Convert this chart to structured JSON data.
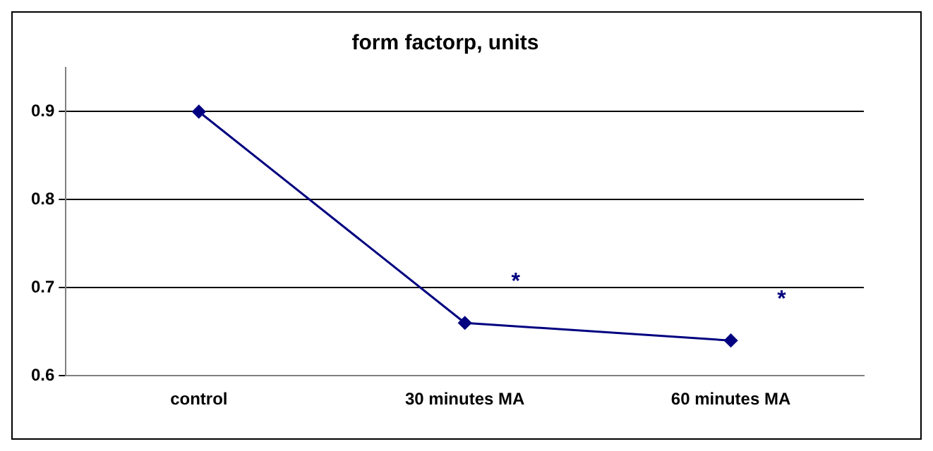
{
  "chart_data": {
    "type": "line",
    "title": "form factorp, units",
    "categories": [
      "control",
      "30 minutes MA",
      "60 minutes MA"
    ],
    "series": [
      {
        "color": "#000080",
        "values": [
          0.9,
          0.66,
          0.64
        ]
      }
    ],
    "ylim": [
      0.6,
      0.95
    ],
    "yticks": [
      0.6,
      0.7,
      0.8,
      0.9
    ],
    "grid": "y",
    "legend": false,
    "marker": "diamond",
    "line_style": "solid",
    "annotations": [
      "*",
      "*"
    ]
  }
}
